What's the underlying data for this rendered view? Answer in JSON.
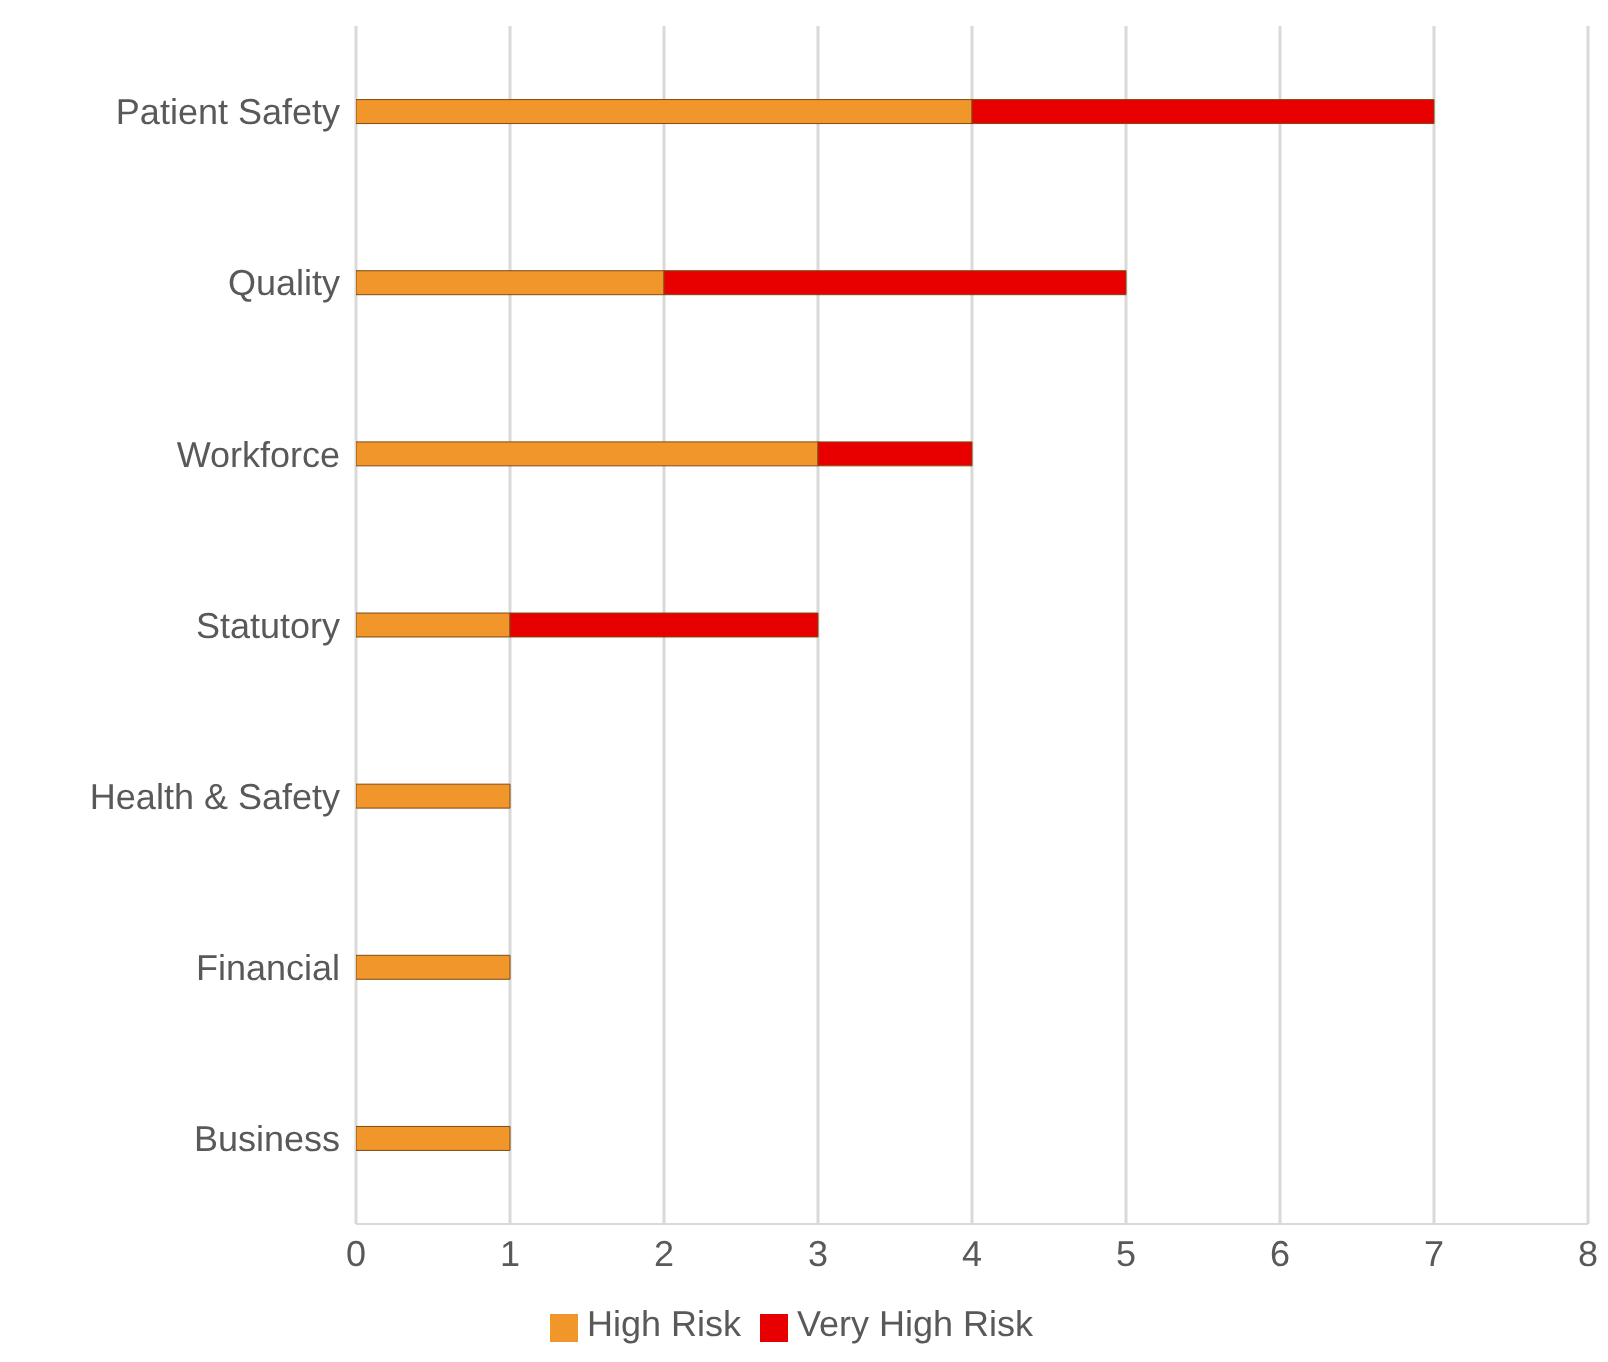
{
  "chart_data": {
    "type": "bar",
    "orientation": "horizontal",
    "stacked": true,
    "categories": [
      "Patient Safety",
      "Quality",
      "Workforce",
      "Statutory",
      "Health & Safety",
      "Financial",
      "Business"
    ],
    "series": [
      {
        "name": "High Risk",
        "color": "#f0962a",
        "values": [
          4,
          2,
          3,
          1,
          1,
          1,
          1
        ]
      },
      {
        "name": "Very High Risk",
        "color": "#e80000",
        "values": [
          3,
          3,
          1,
          2,
          0,
          0,
          0
        ]
      }
    ],
    "xlim": [
      0,
      8
    ],
    "xticks": [
      0,
      1,
      2,
      3,
      4,
      5,
      6,
      7,
      8
    ],
    "grid": "x",
    "legend": "bottom"
  }
}
